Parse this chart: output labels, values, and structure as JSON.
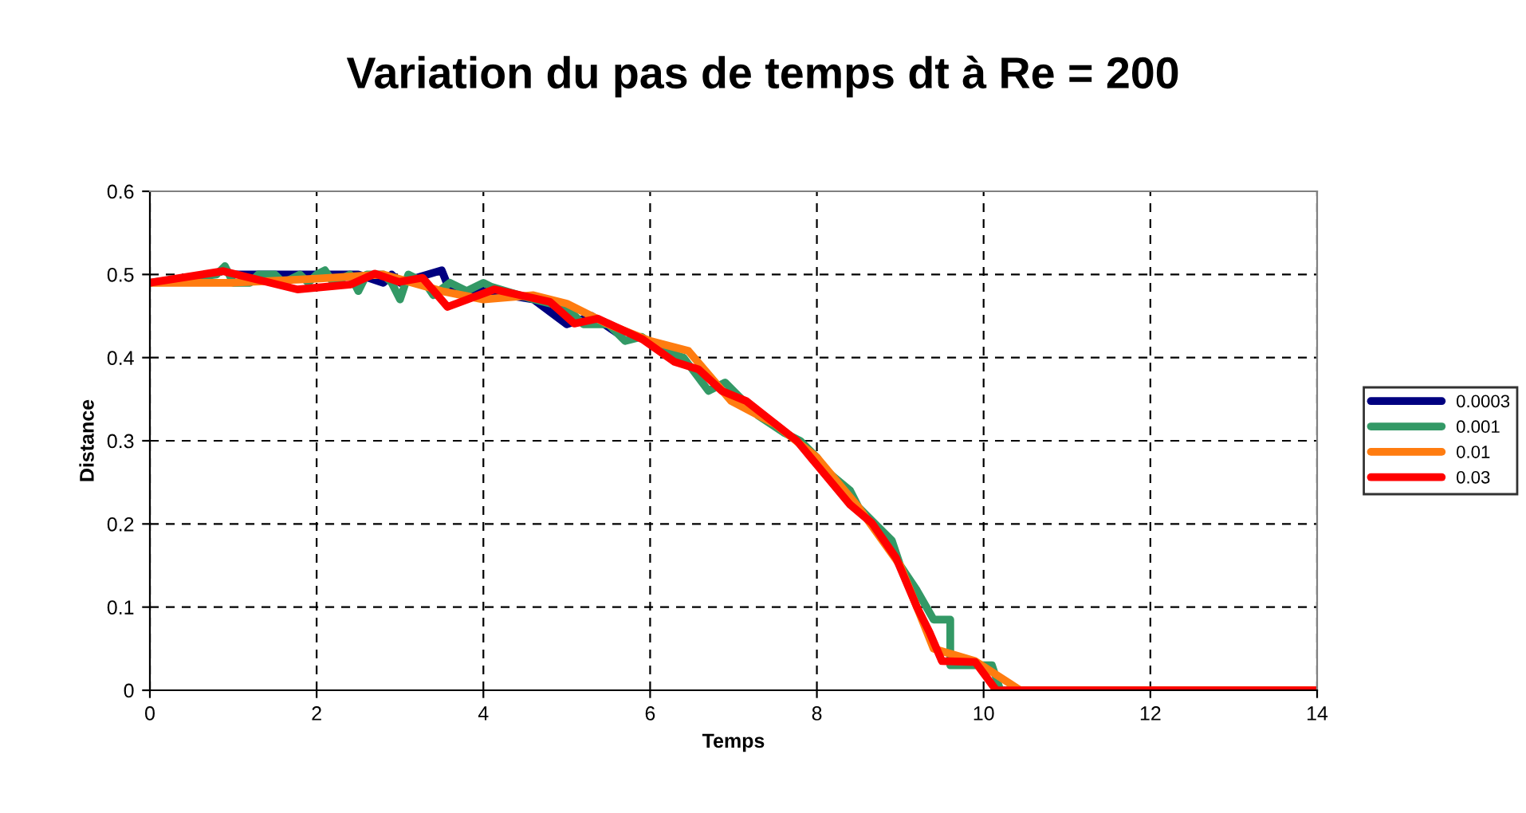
{
  "chart_data": {
    "type": "line",
    "title": "Variation du pas de temps dt à Re = 200",
    "xlabel": "Temps",
    "ylabel": "Distance",
    "xlim": [
      0,
      14
    ],
    "xticks": [
      0,
      2,
      4,
      6,
      8,
      10,
      12,
      14
    ],
    "ylim": [
      0,
      0.6
    ],
    "yticks": [
      0,
      0.1,
      0.2,
      0.3,
      0.4,
      0.5,
      0.6
    ],
    "grid": true,
    "legend": "right",
    "marker": "none",
    "line_style": "solid",
    "series": [
      {
        "name": "0.0003",
        "color": "#000080",
        "x": [
          1,
          1.5,
          2,
          2.5,
          2.8,
          2.9,
          3.0,
          3.5,
          3.6,
          4.0,
          4.6,
          5.0,
          5.3,
          5.6
        ],
        "values": [
          0.5,
          0.5,
          0.5,
          0.5,
          0.49,
          0.5,
          0.49,
          0.505,
          0.48,
          0.48,
          0.47,
          0.44,
          0.45,
          0.43
        ]
      },
      {
        "name": "0.001",
        "color": "#339966",
        "x": [
          0,
          0.8,
          0.9,
          1.0,
          1.2,
          1.3,
          1.5,
          1.6,
          1.8,
          1.9,
          2.0,
          2.1,
          2.2,
          2.4,
          2.5,
          2.6,
          2.8,
          2.9,
          3.0,
          3.1,
          3.3,
          3.4,
          3.6,
          3.8,
          4.0,
          4.1,
          4.6,
          5.0,
          5.2,
          5.5,
          5.7,
          5.9,
          6.1,
          6.4,
          6.7,
          6.9,
          7.1,
          7.3,
          7.6,
          7.8,
          8.0,
          8.1,
          8.4,
          8.5,
          8.7,
          8.9,
          9.0,
          9.2,
          9.4,
          9.6,
          9.6,
          10.1,
          10.2,
          14
        ],
        "values": [
          0.49,
          0.5,
          0.51,
          0.49,
          0.49,
          0.5,
          0.5,
          0.49,
          0.5,
          0.49,
          0.5,
          0.505,
          0.49,
          0.5,
          0.48,
          0.5,
          0.5,
          0.49,
          0.47,
          0.5,
          0.49,
          0.475,
          0.49,
          0.48,
          0.49,
          0.485,
          0.47,
          0.46,
          0.44,
          0.44,
          0.42,
          0.425,
          0.41,
          0.4,
          0.36,
          0.37,
          0.35,
          0.33,
          0.31,
          0.3,
          0.28,
          0.265,
          0.24,
          0.22,
          0.2,
          0.18,
          0.15,
          0.12,
          0.085,
          0.085,
          0.03,
          0.03,
          0,
          0
        ]
      },
      {
        "name": "0.01",
        "color": "#ff7c10",
        "x": [
          0,
          1,
          2,
          2.8,
          3.5,
          4,
          4.6,
          5,
          5.5,
          6,
          6.46,
          6.97,
          7.5,
          8,
          8.5,
          9,
          9.4,
          9.9,
          10.44,
          14
        ],
        "values": [
          0.49,
          0.49,
          0.495,
          0.5,
          0.48,
          0.47,
          0.475,
          0.465,
          0.44,
          0.42,
          0.408,
          0.348,
          0.32,
          0.28,
          0.22,
          0.15,
          0.05,
          0.035,
          0,
          0
        ]
      },
      {
        "name": "0.03",
        "color": "#ff0000",
        "x": [
          0,
          0.88,
          1.77,
          2.41,
          2.7,
          2.99,
          3.27,
          3.57,
          4.13,
          4.8,
          5.09,
          5.37,
          5.91,
          6.29,
          6.58,
          6.86,
          7.15,
          7.48,
          7.76,
          8.05,
          8.4,
          8.66,
          8.95,
          9.2,
          9.35,
          9.5,
          9.9,
          10.15,
          14
        ],
        "values": [
          0.49,
          0.504,
          0.482,
          0.488,
          0.501,
          0.491,
          0.496,
          0.461,
          0.482,
          0.467,
          0.441,
          0.447,
          0.422,
          0.395,
          0.386,
          0.36,
          0.348,
          0.322,
          0.3,
          0.265,
          0.223,
          0.201,
          0.159,
          0.1,
          0.07,
          0.035,
          0.034,
          0,
          0
        ]
      }
    ]
  }
}
